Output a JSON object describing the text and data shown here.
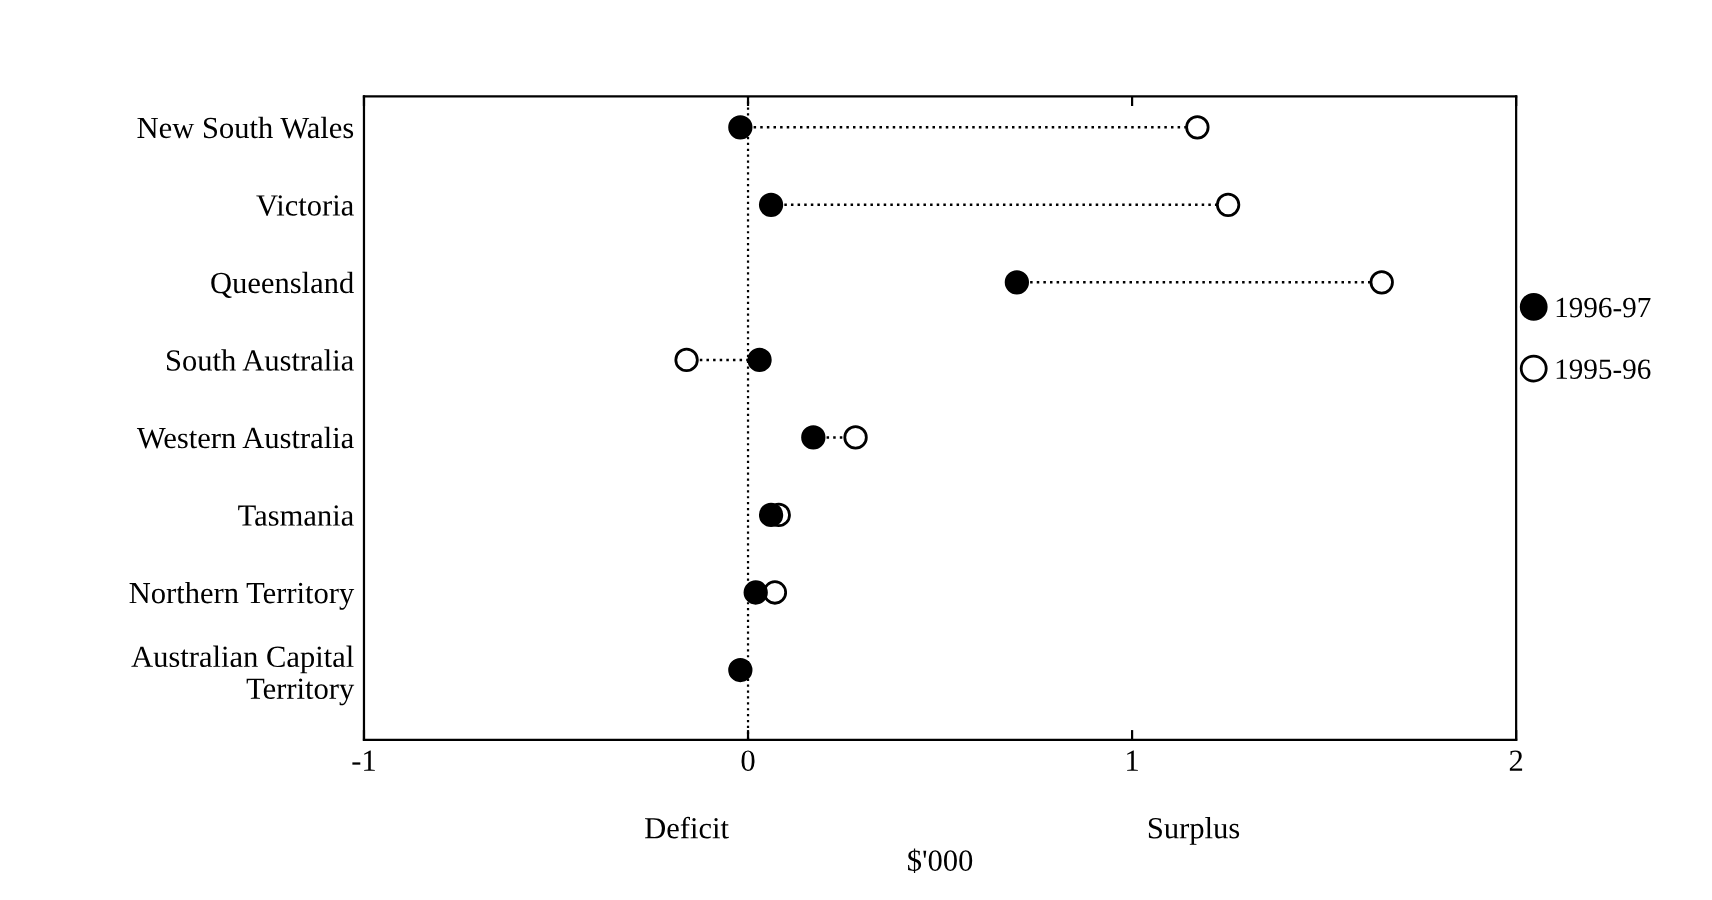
{
  "chart_data": {
    "type": "scatter",
    "orientation": "horizontal",
    "categories": [
      "New South Wales",
      "Victoria",
      "Queensland",
      "South Australia",
      "Western Australia",
      "Tasmania",
      "Northern Territory",
      "Australian Capital\nTerritory"
    ],
    "series": [
      {
        "name": "1996-97",
        "color": "#000000",
        "values": [
          -0.02,
          0.06,
          0.7,
          0.03,
          0.17,
          0.06,
          0.02,
          -0.02
        ]
      },
      {
        "name": "1995-96",
        "color": "#ffffff",
        "values": [
          1.17,
          1.25,
          1.65,
          -0.16,
          0.28,
          0.08,
          0.07,
          null
        ]
      }
    ],
    "xlabel": "$'000",
    "annotations": [
      "Deficit",
      "Surplus"
    ],
    "xlim": [
      -1,
      2
    ],
    "xticks": [
      -1,
      0,
      1,
      2
    ],
    "ref_lines": [
      {
        "axis": "x",
        "value": 0,
        "line_style": "dotted",
        "color": "#000000"
      }
    ],
    "marker": "circle",
    "grid": false,
    "legend": "right"
  }
}
